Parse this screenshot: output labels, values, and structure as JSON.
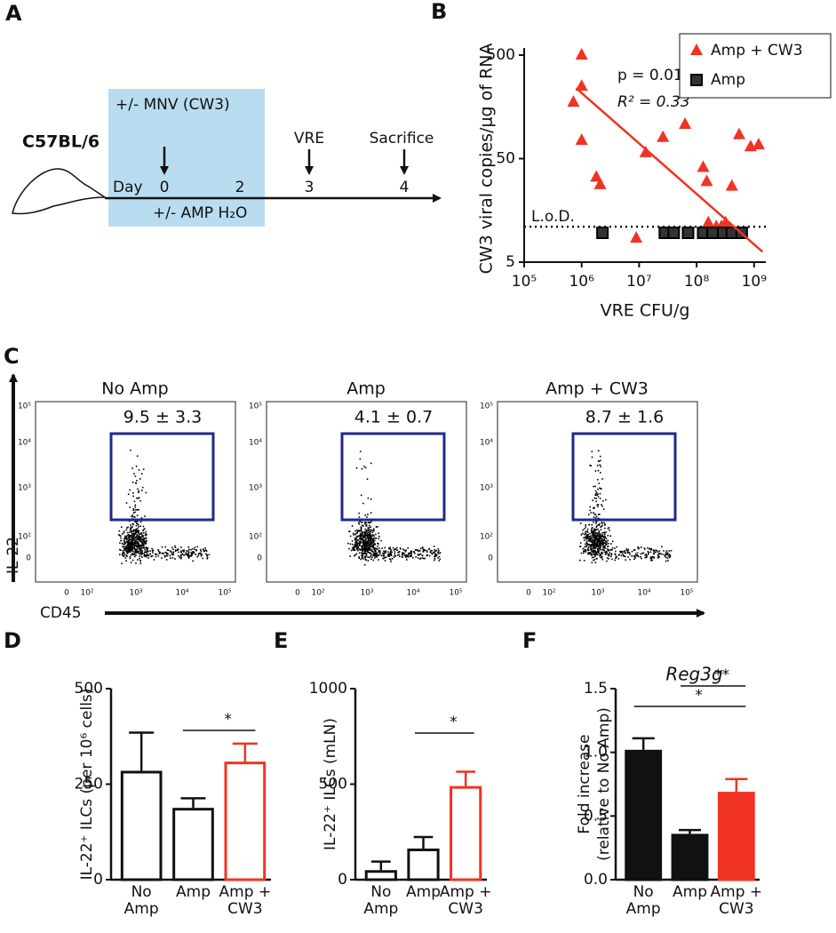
{
  "panel_labels": [
    "A",
    "B",
    "C",
    "D",
    "E",
    "F"
  ],
  "timeline": {
    "strain": "C57BL/6",
    "treatment": "+/- MNV (CW3)",
    "day_label": "Day",
    "days": [
      "0",
      "2",
      "3",
      "4"
    ],
    "water": "+/- AMP H₂O",
    "events": [
      "VRE",
      "Sacrifice"
    ]
  },
  "flow": {
    "y_label": "IL-22",
    "x_label": "CD45",
    "yticks": [
      "10⁵",
      "10⁴",
      "10³",
      "10²",
      "0"
    ],
    "xticks": [
      "0",
      "10²",
      "10³",
      "10⁴",
      "10⁵"
    ],
    "plots": [
      {
        "title": "No Amp",
        "gate": "9.5 ± 3.3"
      },
      {
        "title": "Amp",
        "gate": "4.1 ± 0.7"
      },
      {
        "title": "Amp + CW3",
        "gate": "8.7 ± 1.6"
      }
    ]
  },
  "chart_data": [
    {
      "type": "scatter",
      "x_label": "VRE CFU/g",
      "y_label": "CW3 viral copies/μg of RNA",
      "log_x": true,
      "log_y": true,
      "xlim": [
        100000,
        1600000000
      ],
      "ylim": [
        5,
        500
      ],
      "xticks": [
        {
          "value": 100000,
          "label": "10⁵"
        },
        {
          "value": 1000000,
          "label": "10⁶"
        },
        {
          "value": 10000000,
          "label": "10⁷"
        },
        {
          "value": 100000000,
          "label": "10⁸"
        },
        {
          "value": 1000000000,
          "label": "10⁹"
        }
      ],
      "yticks": [
        5,
        50,
        500
      ],
      "legend": "upper right",
      "annotations": [
        "p = 0.01",
        "R² = 0.33"
      ],
      "lod": {
        "label": "L.o.D.",
        "value": 11
      },
      "fit": {
        "color": "#f03323",
        "x": [
          800000,
          1400000000
        ],
        "values": [
          240,
          6.3
        ]
      },
      "series": [
        {
          "name": "Amp + CW3",
          "color": "#f03323",
          "marker": "triangle",
          "x": [
            720000,
            1000000,
            1000000,
            1000000,
            1800000,
            2100000,
            8900000,
            13000000,
            26000000,
            63000000,
            130000000,
            150000000,
            160000000,
            220000000,
            270000000,
            320000000,
            410000000,
            550000000,
            870000000,
            1200000000
          ],
          "values": [
            175,
            500,
            250,
            75,
            33,
            28,
            8.5,
            57,
            80,
            107,
            41,
            30,
            12,
            11,
            11,
            12,
            27,
            85,
            65,
            68
          ]
        },
        {
          "name": "Amp",
          "color": "#333333",
          "marker": "square",
          "x": [
            2300000,
            28000000,
            40000000,
            71000000,
            130000000,
            190000000,
            290000000,
            410000000,
            610000000
          ],
          "values": [
            9.6,
            9.6,
            9.6,
            9.6,
            9.6,
            9.6,
            9.6,
            9.6,
            9.6
          ]
        }
      ]
    },
    {
      "type": "bar",
      "y_label": "IL-22⁺ ILCs (per 10⁶ cells)",
      "categories": [
        "No Amp",
        "Amp",
        "Amp + CW3"
      ],
      "values": [
        285,
        188,
        309
      ],
      "errors": [
        100,
        25,
        47
      ],
      "colors": [
        "#111111",
        "#111111",
        "#f03323"
      ],
      "filled": false,
      "ylim": [
        0,
        500
      ],
      "yticks": [
        0,
        250,
        500
      ],
      "significance": [
        {
          "label": "*",
          "from": 1,
          "to": 2
        }
      ]
    },
    {
      "type": "bar",
      "y_label": "IL-22⁺ ILCs (mLN)",
      "categories": [
        "No Amp",
        "Amp",
        "Amp + CW3"
      ],
      "values": [
        50,
        163,
        490
      ],
      "errors": [
        45,
        60,
        75
      ],
      "colors": [
        "#111111",
        "#111111",
        "#f03323"
      ],
      "filled": false,
      "ylim": [
        0,
        1000
      ],
      "yticks": [
        0,
        500,
        1000
      ],
      "significance": [
        {
          "label": "*",
          "from": 1,
          "to": 2
        }
      ]
    },
    {
      "type": "bar",
      "title": "Reg3g",
      "y_label": [
        "Fold increase",
        "(relative to No Amp)"
      ],
      "categories": [
        "No Amp",
        "Amp",
        "Amp + CW3"
      ],
      "values": [
        1.02,
        0.36,
        0.69
      ],
      "errors": [
        0.09,
        0.03,
        0.1
      ],
      "colors": [
        "#111111",
        "#111111",
        "#f03323"
      ],
      "filled": true,
      "ylim": [
        0,
        1.5
      ],
      "yticks": [
        {
          "value": 0,
          "label": "0.0"
        },
        0.5,
        {
          "value": 1,
          "label": "1.0"
        },
        1.5
      ],
      "significance": [
        {
          "label": "**",
          "from": 1,
          "to": 2
        },
        {
          "label": "*",
          "from": 0,
          "to": 2
        }
      ]
    }
  ]
}
